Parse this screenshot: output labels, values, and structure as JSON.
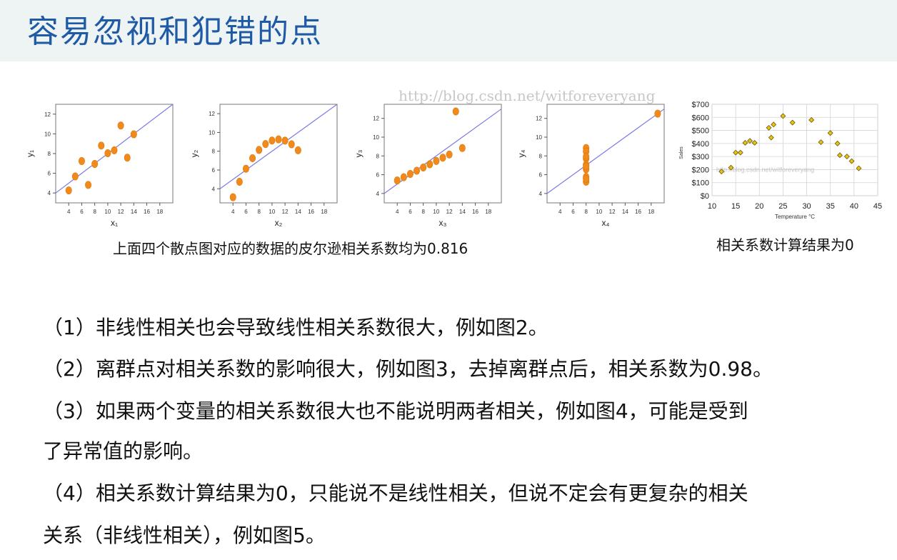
{
  "title": "容易忽视和犯错的点",
  "watermarks": {
    "top": "http://blog.csdn.net/witforeveryang",
    "chart5": "http://blog.csdn.net/witforeveryang"
  },
  "captions": {
    "left": "上面四个散点图对应的数据的皮尔逊相关系数均为0.816",
    "right": "相关系数计算结果为0"
  },
  "paragraphs": [
    "（1）非线性相关也会导致线性相关系数很大，例如图2。",
    "（2）离群点对相关系数的影响很大，例如图3，去掉离群点后，相关系数为0.98。",
    "（3）如果两个变量的相关系数很大也不能说明两者相关，例如图4，可能是受到",
    "了异常值的影响。",
    "（4）相关系数计算结果为0，只能说不是线性相关，但说不定会有更复杂的相关",
    "关系（非线性相关），例如图5。"
  ],
  "colors": {
    "title": "#1f5aa6",
    "point": "#f08a1c",
    "fit_line": "#7a7ae6",
    "chart5_point": "#e6c21a"
  },
  "chart_data": [
    {
      "type": "scatter",
      "xlabel": "x₁",
      "ylabel": "y₁",
      "xlim": [
        2,
        20
      ],
      "ylim": [
        3,
        13
      ],
      "xticks": [
        4,
        6,
        8,
        10,
        12,
        14,
        16,
        18
      ],
      "yticks": [
        4,
        6,
        8,
        10,
        12
      ],
      "x": [
        10,
        8,
        13,
        9,
        11,
        14,
        6,
        4,
        12,
        7,
        5
      ],
      "y": [
        8.04,
        6.95,
        7.58,
        8.81,
        8.33,
        9.96,
        7.24,
        4.26,
        10.84,
        4.82,
        5.68
      ],
      "fit_line": {
        "slope": 0.5,
        "intercept": 3.0
      }
    },
    {
      "type": "scatter",
      "xlabel": "x₂",
      "ylabel": "y₂",
      "xlim": [
        2,
        20
      ],
      "ylim": [
        2.5,
        13
      ],
      "xticks": [
        4,
        6,
        8,
        10,
        12,
        14,
        16,
        18
      ],
      "yticks": [
        4,
        6,
        8,
        10,
        12
      ],
      "x": [
        10,
        8,
        13,
        9,
        11,
        14,
        6,
        4,
        12,
        7,
        5
      ],
      "y": [
        9.14,
        8.14,
        8.74,
        8.77,
        9.26,
        8.1,
        6.13,
        3.1,
        9.13,
        7.26,
        4.74
      ],
      "fit_line": {
        "slope": 0.5,
        "intercept": 3.0
      }
    },
    {
      "type": "scatter",
      "xlabel": "x₃",
      "ylabel": "y₃",
      "xlim": [
        2,
        20
      ],
      "ylim": [
        3,
        13.5
      ],
      "xticks": [
        4,
        6,
        8,
        10,
        12,
        14,
        16,
        18
      ],
      "yticks": [
        4,
        6,
        8,
        10,
        12
      ],
      "x": [
        10,
        8,
        13,
        9,
        11,
        14,
        6,
        4,
        12,
        7,
        5
      ],
      "y": [
        7.46,
        6.77,
        12.74,
        7.11,
        7.81,
        8.84,
        6.08,
        5.39,
        8.15,
        6.42,
        5.73
      ],
      "fit_line": {
        "slope": 0.5,
        "intercept": 3.0
      }
    },
    {
      "type": "scatter",
      "xlabel": "x₄",
      "ylabel": "y₄",
      "xlim": [
        2,
        20
      ],
      "ylim": [
        3,
        13.5
      ],
      "xticks": [
        4,
        6,
        8,
        10,
        12,
        14,
        16,
        18
      ],
      "yticks": [
        4,
        6,
        8,
        10,
        12
      ],
      "x": [
        8,
        8,
        8,
        8,
        8,
        8,
        8,
        19,
        8,
        8,
        8
      ],
      "y": [
        6.58,
        5.76,
        7.71,
        8.84,
        8.47,
        7.04,
        5.25,
        12.5,
        5.56,
        7.91,
        6.89
      ],
      "fit_line": {
        "slope": 0.5,
        "intercept": 3.0
      }
    },
    {
      "type": "scatter",
      "xlabel": "Temperature °C",
      "ylabel": "Sales",
      "xlim": [
        10,
        45
      ],
      "ylim": [
        0,
        700
      ],
      "xticks": [
        10,
        15,
        20,
        25,
        30,
        35,
        40,
        45
      ],
      "yticks": [
        0,
        100,
        200,
        300,
        400,
        500,
        600,
        700
      ],
      "ytick_labels": [
        "$0",
        "$100",
        "$200",
        "$300",
        "$400",
        "$500",
        "$600",
        "$700"
      ],
      "grid": true,
      "x": [
        12,
        14,
        15,
        16,
        17,
        18,
        19,
        22,
        22.5,
        23,
        25,
        27,
        31,
        33,
        35,
        36.5,
        37,
        38.5,
        39.5,
        41
      ],
      "y": [
        185,
        215,
        330,
        330,
        405,
        420,
        405,
        520,
        445,
        545,
        610,
        560,
        580,
        410,
        480,
        400,
        310,
        300,
        265,
        210
      ]
    }
  ]
}
